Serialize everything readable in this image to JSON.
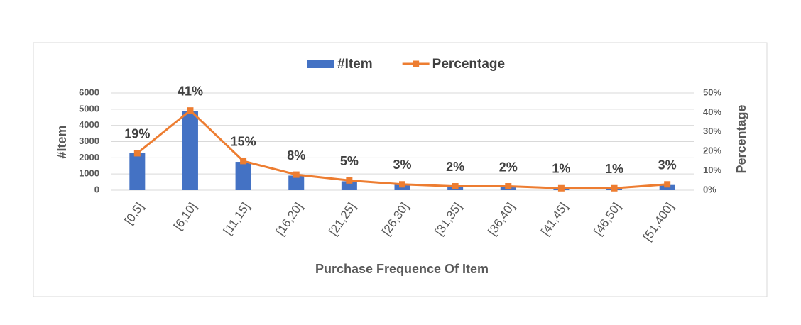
{
  "chart_data": {
    "type": "bar_line",
    "x_label": "Purchase Frequence Of  Item",
    "y_label": "#Item",
    "y2_label": "Percentage",
    "categories": [
      "[0,5]",
      "[6,10]",
      "[11,15]",
      "[16,20]",
      "[21,25]",
      "[26,30]",
      "[31,35]",
      "[36,40]",
      "[41,45]",
      "[46,50]",
      "[51,400]"
    ],
    "series": [
      {
        "name": "#Item",
        "type": "bar",
        "color": "#4472c4",
        "values": [
          2280,
          4900,
          1750,
          900,
          550,
          380,
          250,
          200,
          150,
          120,
          320
        ]
      },
      {
        "name": "Percentage",
        "type": "line",
        "axis": "y2",
        "color": "#ed7d31",
        "values": [
          19,
          41,
          15,
          8,
          5,
          3,
          2,
          2,
          1,
          1,
          3
        ],
        "value_labels": [
          "19%",
          "41%",
          "15%",
          "8%",
          "5%",
          "3%",
          "2%",
          "2%",
          "1%",
          "1%",
          "3%"
        ]
      }
    ],
    "ylim": [
      0,
      6000
    ],
    "yticks": [
      0,
      1000,
      2000,
      3000,
      4000,
      5000,
      6000
    ],
    "y2lim": [
      0,
      50
    ],
    "y2ticks": [
      {
        "value": 0,
        "label": "0%"
      },
      {
        "value": 10,
        "label": "10%"
      },
      {
        "value": 20,
        "label": "20%"
      },
      {
        "value": 30,
        "label": "30%"
      },
      {
        "value": 40,
        "label": "40%"
      },
      {
        "value": 50,
        "label": "50%"
      }
    ],
    "grid": true,
    "legend": "top"
  }
}
